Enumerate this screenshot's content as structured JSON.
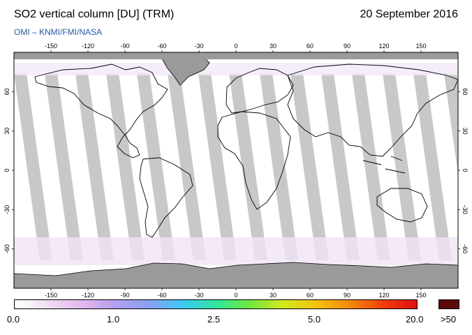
{
  "header": {
    "title": "SO2 vertical column [DU] (TRM)",
    "date": "20 September 2016",
    "credit": "OMI  –  KNMI/FMI/NASA"
  },
  "map": {
    "lon_ticks": [
      "-150",
      "-120",
      "-90",
      "-60",
      "-30",
      "0",
      "30",
      "60",
      "90",
      "120",
      "150"
    ],
    "lat_ticks": [
      "60",
      "30",
      "0",
      "-30",
      "-60"
    ],
    "colors": {
      "ocean_swath": "#ffffff",
      "no_data": "#c8c8c8",
      "land_ice": "#9a9a9a",
      "coastline": "#000000"
    }
  },
  "colorbar": {
    "labels": [
      "0.0",
      "1.0",
      "2.5",
      "5.0",
      "20.0"
    ],
    "overflow_label": ">50",
    "colors": [
      "#ffffff",
      "#f1ddf1",
      "#e3b8ef",
      "#b49fef",
      "#8aa0f2",
      "#3fc8f5",
      "#2fe5a0",
      "#6fe840",
      "#d2e91d",
      "#f5c20e",
      "#f38a0a",
      "#ef3e0a",
      "#e01010"
    ],
    "overflow_color": "#5a0a0a"
  }
}
